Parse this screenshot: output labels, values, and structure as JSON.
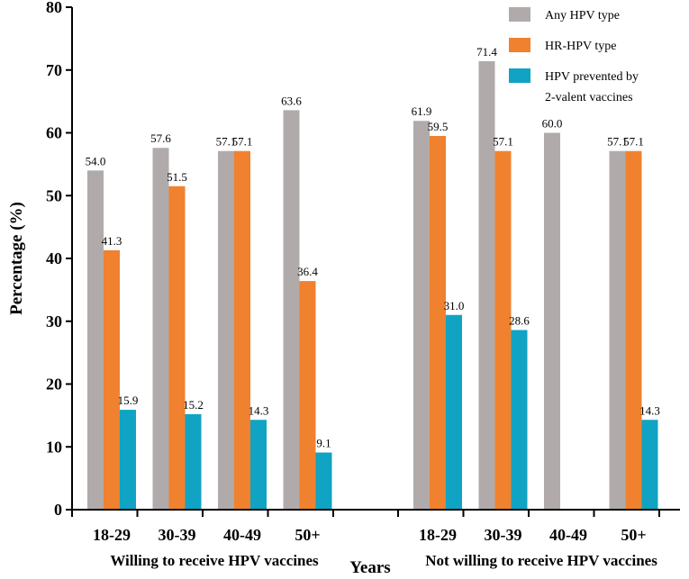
{
  "chart_data": {
    "type": "bar",
    "ylabel": "Percentage (%)",
    "xlabel": "Years",
    "ylim": [
      0,
      80
    ],
    "yticks": [
      0,
      10,
      20,
      30,
      40,
      50,
      60,
      70,
      80
    ],
    "legend_position": "top-right",
    "groups": [
      {
        "label": "Willing to receive HPV vaccines",
        "categories": [
          "18-29",
          "30-39",
          "40-49",
          "50+"
        ]
      },
      {
        "label": "Not willing to receive HPV vaccines",
        "categories": [
          "18-29",
          "30-39",
          "40-49",
          "50+"
        ]
      }
    ],
    "series": [
      {
        "name": "Any HPV type",
        "color": "#b0abaa",
        "values": [
          54.0,
          57.6,
          57.1,
          63.6,
          61.9,
          71.4,
          60.0,
          57.1
        ],
        "labels": [
          "54.0",
          "57.6",
          "57.1",
          "63.6",
          "61.9",
          "71.4",
          "60.0",
          "57.1"
        ]
      },
      {
        "name": "HR-HPV type",
        "color": "#f0812f",
        "values": [
          41.3,
          51.5,
          57.1,
          36.4,
          59.5,
          57.1,
          null,
          57.1
        ],
        "labels": [
          "41.3",
          "51.5",
          "57.1",
          "36.4",
          "59.5",
          "57.1",
          null,
          "57.1"
        ]
      },
      {
        "name": "HPV prevented by 2-valent vaccines",
        "legend_lines": [
          "HPV prevented by",
          "2-valent vaccines"
        ],
        "color": "#10a3c4",
        "values": [
          15.9,
          15.2,
          14.3,
          9.1,
          31.0,
          28.6,
          null,
          14.3
        ],
        "labels": [
          "15.9",
          "15.2",
          "14.3",
          "9.1",
          "31.0",
          "28.6",
          null,
          "14.3"
        ]
      }
    ]
  }
}
